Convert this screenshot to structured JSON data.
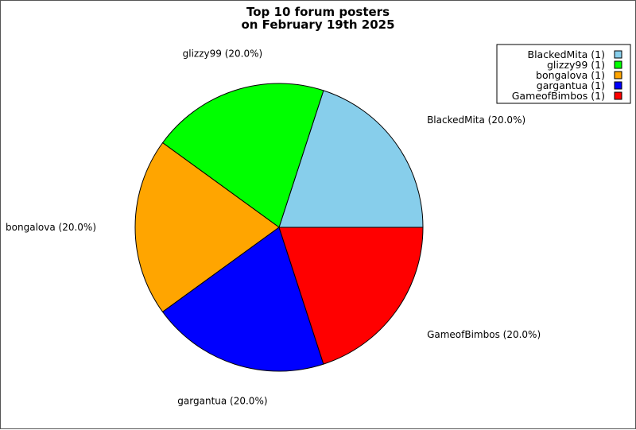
{
  "chart_data": {
    "type": "pie",
    "title": [
      "Top 10 forum posters",
      "on February 19th 2025"
    ],
    "slices": [
      {
        "label": "BlackedMita",
        "value": 1,
        "percent": "20.0%",
        "color": "#87CEEB"
      },
      {
        "label": "glizzy99",
        "value": 1,
        "percent": "20.0%",
        "color": "#00FF00"
      },
      {
        "label": "bongalova",
        "value": 1,
        "percent": "20.0%",
        "color": "#FFA500"
      },
      {
        "label": "gargantua",
        "value": 1,
        "percent": "20.0%",
        "color": "#0000FF"
      },
      {
        "label": "GameofBimbos",
        "value": 1,
        "percent": "20.0%",
        "color": "#FF0000"
      }
    ],
    "legend_position": "top-right",
    "grid": false
  }
}
